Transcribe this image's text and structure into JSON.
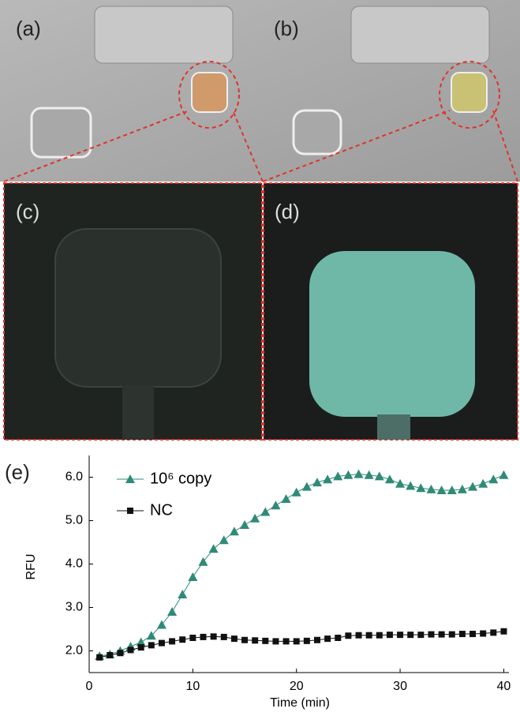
{
  "panel_labels": [
    "(a)",
    "(b)",
    "(c)",
    "(d)",
    "(e)"
  ],
  "chart_data": {
    "type": "line",
    "x_label": "Time (min)",
    "y_label": "RFU",
    "x": [
      1,
      2,
      3,
      4,
      5,
      6,
      7,
      8,
      9,
      10,
      11,
      12,
      13,
      14,
      15,
      16,
      17,
      18,
      19,
      20,
      21,
      22,
      23,
      24,
      25,
      26,
      27,
      28,
      29,
      30,
      31,
      32,
      33,
      34,
      35,
      36,
      37,
      38,
      39,
      40
    ],
    "series": [
      {
        "name": "10⁶ copy",
        "color": "#2f8a78",
        "marker": "triangle",
        "values": [
          1.88,
          1.92,
          2.0,
          2.1,
          2.2,
          2.35,
          2.6,
          2.9,
          3.3,
          3.7,
          4.05,
          4.35,
          4.55,
          4.75,
          4.9,
          5.05,
          5.2,
          5.35,
          5.5,
          5.65,
          5.78,
          5.88,
          5.95,
          6.02,
          6.05,
          6.07,
          6.05,
          6.02,
          5.95,
          5.85,
          5.8,
          5.75,
          5.72,
          5.7,
          5.7,
          5.72,
          5.78,
          5.85,
          5.95,
          6.05
        ]
      },
      {
        "name": "NC",
        "color": "#111111",
        "marker": "square",
        "values": [
          1.85,
          1.9,
          1.95,
          2.02,
          2.08,
          2.13,
          2.18,
          2.22,
          2.26,
          2.3,
          2.32,
          2.33,
          2.32,
          2.28,
          2.25,
          2.24,
          2.23,
          2.22,
          2.22,
          2.22,
          2.23,
          2.25,
          2.28,
          2.3,
          2.35,
          2.36,
          2.36,
          2.36,
          2.37,
          2.37,
          2.37,
          2.37,
          2.38,
          2.38,
          2.38,
          2.39,
          2.39,
          2.4,
          2.42,
          2.45
        ]
      }
    ],
    "xlim": [
      0,
      40.5
    ],
    "xticks": [
      0,
      10,
      20,
      30,
      40
    ],
    "ylim": [
      1.5,
      6.5
    ],
    "yticks": [
      {
        "value": 2,
        "label": "2.0"
      },
      {
        "value": 3,
        "label": "3.0"
      },
      {
        "value": 4,
        "label": "4.0"
      },
      {
        "value": 5,
        "label": "5.0"
      },
      {
        "value": 6,
        "label": "6.0"
      }
    ],
    "legend": "upper left"
  }
}
